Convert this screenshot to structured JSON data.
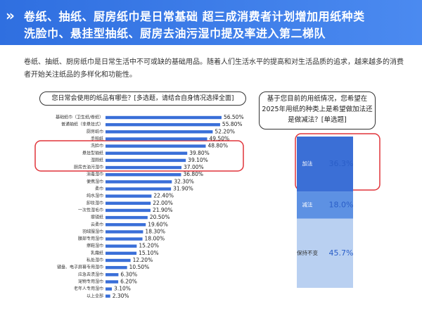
{
  "header": {
    "title_lines": [
      "卷纸、抽纸、厨房纸巾是日常基础 超三成消费者计划增加用纸种类",
      "洗脸巾、悬挂型抽纸、厨房去油污湿巾提及率进入第二梯队"
    ]
  },
  "intro": "卷纸、抽纸、厨房纸巾是日常生活中不可或缺的基础用品。随着人们生活水平的提高和对生活品质的追求，越来越多的消费者开始关注纸品的多样化和功能性。",
  "chart_data": [
    {
      "type": "bar",
      "title": "您日常会使用的纸品有哪些？[多选题，请结合自身情况选择全面]",
      "color": "#3a6fd8",
      "categories": [
        "基础纸巾（卫生纸/卷纸）",
        "普通抽纸（非悬挂式）",
        "厨房纸巾",
        "手帕纸",
        "洗脸巾",
        "悬挂型抽纸",
        "湿厕纸",
        "厨房去油污湿巾",
        "消毒湿巾",
        "便携湿巾",
        "柔巾",
        "纯水湿巾",
        "卸妆湿巾",
        "一次性湿毛巾",
        "擦镜纸",
        "云柔巾",
        "羽绒服湿巾",
        "腰部专用湿巾",
        "擦鞋湿巾",
        "乳霜纸",
        "私处湿巾",
        "键盘、电子屏幕专用湿巾",
        "应急去渍湿巾",
        "宠物专用湿巾",
        "老年人专用湿巾",
        "以上全部"
      ],
      "values": [
        56.5,
        55.8,
        52.2,
        49.5,
        48.8,
        39.8,
        39.1,
        37.0,
        36.8,
        32.3,
        31.9,
        22.4,
        22.0,
        21.9,
        20.5,
        19.6,
        18.3,
        18.0,
        15.2,
        15.1,
        12.2,
        10.5,
        6.3,
        6.2,
        3.1,
        2.3
      ],
      "value_labels": [
        "56.50%",
        "55.80%",
        "52.20%",
        "49.50%",
        "48.80%",
        "39.80%",
        "39.10%",
        "37.00%",
        "36.80%",
        "32.30%",
        "31.90%",
        "22.40%",
        "22.00%",
        "21.90%",
        "20.50%",
        "19.60%",
        "18.30%",
        "18.00%",
        "15.20%",
        "15.10%",
        "12.20%",
        "10.50%",
        "6.30%",
        "6.20%",
        "3.10%",
        "2.30%"
      ]
    },
    {
      "type": "stacked",
      "title": "基于您目前的用纸情况，您希望在2025年用纸的种类上是希望做加法还是做减法？[单选题]",
      "series": [
        {
          "name": "加法",
          "color": "#3b6fd6",
          "values": [
            36.3
          ],
          "value_labels": [
            "36.3%"
          ]
        },
        {
          "name": "减法",
          "color": "#5d91e3",
          "values": [
            18.0
          ],
          "value_labels": [
            "18.0%"
          ]
        },
        {
          "name": "保持不变",
          "color": "#b9d0f1",
          "values": [
            45.7
          ],
          "value_labels": [
            "45.7%"
          ]
        }
      ]
    }
  ]
}
